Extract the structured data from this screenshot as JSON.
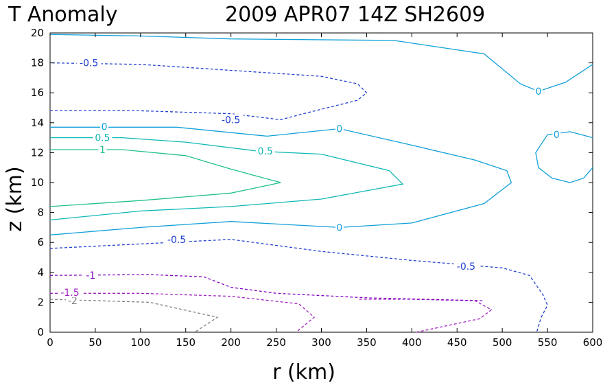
{
  "chart_data": {
    "type": "contour",
    "title_left": "T Anomaly",
    "title_right": "2009 APR07 14Z   SH2609",
    "xlabel": "r (km)",
    "ylabel": "z (km)",
    "xlim": [
      0,
      600
    ],
    "ylim": [
      0,
      20
    ],
    "xticks": [
      "0",
      "50",
      "100",
      "150",
      "200",
      "250",
      "300",
      "350",
      "400",
      "450",
      "500",
      "550",
      "600"
    ],
    "yticks": [
      "0",
      "2",
      "4",
      "6",
      "8",
      "10",
      "12",
      "14",
      "16",
      "18",
      "20"
    ],
    "colors": {
      "-2": "#808080",
      "-1.5": "#a020c0",
      "-1": "#8000c0",
      "-0.5": "#2040d0",
      "0": "#10a0d8",
      "0.5": "#10b8b8",
      "1": "#20c090"
    },
    "contours": [
      {
        "level": "-2",
        "dashed": true,
        "points": [
          [
            0,
            2.2
          ],
          [
            110,
            2.0
          ],
          [
            185,
            1.0
          ],
          [
            160,
            0
          ]
        ]
      },
      {
        "level": "-1.5",
        "dashed": true,
        "points": [
          [
            0,
            2.6
          ],
          [
            100,
            2.6
          ],
          [
            200,
            2.4
          ],
          [
            275,
            1.9
          ],
          [
            292,
            1.0
          ],
          [
            272,
            0
          ]
        ]
      },
      {
        "level": "-1.5",
        "dashed": true,
        "points": [
          [
            405,
            0
          ],
          [
            475,
            0.9
          ],
          [
            488,
            1.5
          ],
          [
            470,
            2.1
          ],
          [
            400,
            2.2
          ],
          [
            340,
            2.2
          ]
        ]
      },
      {
        "level": "-1",
        "dashed": true,
        "points": [
          [
            0,
            3.8
          ],
          [
            110,
            3.85
          ],
          [
            170,
            3.7
          ],
          [
            200,
            3.0
          ],
          [
            250,
            2.6
          ],
          [
            350,
            2.3
          ],
          [
            480,
            2.1
          ]
        ]
      },
      {
        "level": "-0.5",
        "dashed": true,
        "points": [
          [
            0,
            5.6
          ],
          [
            100,
            5.9
          ],
          [
            200,
            6.2
          ],
          [
            300,
            5.4
          ],
          [
            400,
            4.8
          ],
          [
            500,
            4.3
          ],
          [
            530,
            3.8
          ],
          [
            545,
            2.5
          ],
          [
            550,
            1.8
          ],
          [
            543,
            1.0
          ],
          [
            538,
            0
          ]
        ]
      },
      {
        "level": "0",
        "dashed": false,
        "points": [
          [
            0,
            6.5
          ],
          [
            100,
            7.0
          ],
          [
            200,
            7.4
          ],
          [
            320,
            7.0
          ],
          [
            400,
            7.3
          ],
          [
            480,
            8.6
          ],
          [
            510,
            10.0
          ],
          [
            505,
            10.8
          ],
          [
            470,
            11.5
          ],
          [
            400,
            12.5
          ],
          [
            320,
            13.6
          ],
          [
            240,
            13.1
          ],
          [
            140,
            13.7
          ],
          [
            0,
            13.7
          ]
        ]
      },
      {
        "level": "0.5",
        "dashed": false,
        "points": [
          [
            0,
            7.5
          ],
          [
            100,
            8.1
          ],
          [
            200,
            8.4
          ],
          [
            300,
            8.9
          ],
          [
            390,
            9.9
          ],
          [
            375,
            10.8
          ],
          [
            300,
            11.9
          ],
          [
            230,
            12.1
          ],
          [
            150,
            12.7
          ],
          [
            80,
            13.0
          ],
          [
            0,
            13.0
          ]
        ]
      },
      {
        "level": "1",
        "dashed": false,
        "points": [
          [
            0,
            8.4
          ],
          [
            100,
            8.8
          ],
          [
            200,
            9.3
          ],
          [
            255,
            10.0
          ],
          [
            200,
            10.9
          ],
          [
            150,
            11.8
          ],
          [
            80,
            12.2
          ],
          [
            0,
            12.2
          ]
        ]
      },
      {
        "level": "-0.5",
        "dashed": true,
        "points": [
          [
            0,
            14.8
          ],
          [
            100,
            14.8
          ],
          [
            200,
            14.6
          ],
          [
            255,
            14.2
          ],
          [
            280,
            14.6
          ],
          [
            340,
            15.5
          ],
          [
            350,
            16.0
          ],
          [
            340,
            16.6
          ],
          [
            300,
            17.1
          ],
          [
            200,
            17.5
          ],
          [
            100,
            17.9
          ],
          [
            0,
            18.0
          ]
        ]
      },
      {
        "level": "0",
        "dashed": false,
        "points": [
          [
            0,
            19.9
          ],
          [
            100,
            19.8
          ],
          [
            200,
            19.6
          ],
          [
            380,
            19.5
          ],
          [
            480,
            18.6
          ],
          [
            520,
            16.6
          ],
          [
            540,
            16.1
          ],
          [
            570,
            16.7
          ],
          [
            600,
            17.9
          ]
        ]
      },
      {
        "level": "0",
        "dashed": false,
        "points": [
          [
            600,
            13.0
          ],
          [
            575,
            13.4
          ],
          [
            550,
            13.2
          ],
          [
            537,
            12.0
          ],
          [
            540,
            11.0
          ],
          [
            555,
            10.3
          ],
          [
            575,
            10.0
          ],
          [
            590,
            10.3
          ],
          [
            600,
            11.0
          ]
        ]
      }
    ],
    "labels": [
      {
        "text": "-2",
        "x": 25,
        "y": 2.1,
        "level": "-2"
      },
      {
        "text": "-1.5",
        "x": 22,
        "y": 2.65,
        "level": "-1.5"
      },
      {
        "text": "-1",
        "x": 45,
        "y": 3.8,
        "level": "-1"
      },
      {
        "text": "-0.5",
        "x": 43,
        "y": 18.0,
        "level": "-0.5"
      },
      {
        "text": "-0.5",
        "x": 200,
        "y": 14.2,
        "level": "-0.5"
      },
      {
        "text": "-0.5",
        "x": 140,
        "y": 6.2,
        "level": "-0.5"
      },
      {
        "text": "-0.5",
        "x": 460,
        "y": 4.4,
        "level": "-0.5"
      },
      {
        "text": "0",
        "x": 60,
        "y": 13.75,
        "level": "0"
      },
      {
        "text": "0",
        "x": 320,
        "y": 13.6,
        "level": "0"
      },
      {
        "text": "0",
        "x": 320,
        "y": 7.0,
        "level": "0"
      },
      {
        "text": "0",
        "x": 540,
        "y": 16.1,
        "level": "0"
      },
      {
        "text": "0",
        "x": 560,
        "y": 13.2,
        "level": "0"
      },
      {
        "text": "0.5",
        "x": 58,
        "y": 13.0,
        "level": "0.5"
      },
      {
        "text": "0.5",
        "x": 238,
        "y": 12.1,
        "level": "0.5"
      },
      {
        "text": "1",
        "x": 58,
        "y": 12.2,
        "level": "1"
      }
    ]
  }
}
